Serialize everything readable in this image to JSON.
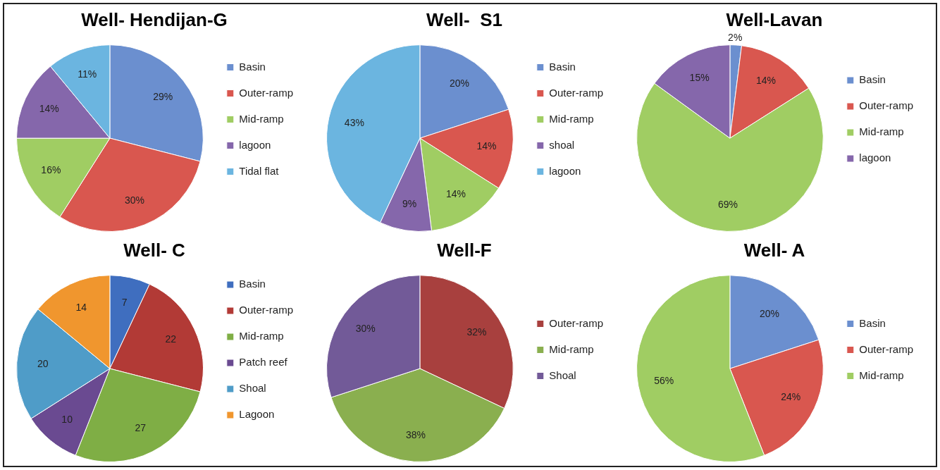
{
  "chart_data": [
    {
      "type": "pie",
      "title": "Well- Hendijan-G",
      "categories": [
        "Basin",
        "Outer-ramp",
        "Mid-ramp",
        "lagoon",
        "Tidal flat"
      ],
      "values": [
        29,
        30,
        16,
        14,
        11
      ],
      "value_labels": [
        "29%",
        "30%",
        "16%",
        "14%",
        "11%"
      ],
      "colors": [
        "#6b8fcf",
        "#d9574f",
        "#a0cd63",
        "#8567ab",
        "#6bb5e0"
      ],
      "legend": "right"
    },
    {
      "type": "pie",
      "title": "Well-  S1",
      "categories": [
        "Basin",
        "Outer-ramp",
        "Mid-ramp",
        "shoal",
        "lagoon"
      ],
      "values": [
        20,
        14,
        14,
        9,
        43
      ],
      "value_labels": [
        "20%",
        "14%",
        "14%",
        "9%",
        "43%"
      ],
      "colors": [
        "#6b8fcf",
        "#d9574f",
        "#a0cd63",
        "#8567ab",
        "#6bb5e0"
      ],
      "legend": "right"
    },
    {
      "type": "pie",
      "title": "Well-Lavan",
      "categories": [
        "Basin",
        "Outer-ramp",
        "Mid-ramp",
        "lagoon"
      ],
      "values": [
        2,
        14,
        69,
        15
      ],
      "value_labels": [
        "2%",
        "14%",
        "69%",
        "15%"
      ],
      "colors": [
        "#6b8fcf",
        "#d9574f",
        "#a0cd63",
        "#8567ab"
      ],
      "legend": "right"
    },
    {
      "type": "pie",
      "title": "Well- C",
      "categories": [
        "Basin",
        "Outer-ramp",
        "Mid-ramp",
        "Patch reef",
        "Shoal",
        "Lagoon"
      ],
      "values": [
        7,
        22,
        27,
        10,
        20,
        14
      ],
      "value_labels": [
        "7",
        "22",
        "27",
        "10",
        "20",
        "14"
      ],
      "colors": [
        "#3f6ebf",
        "#b23a36",
        "#7fae45",
        "#6a4a91",
        "#4f9cc8",
        "#f0962e"
      ],
      "legend": "right"
    },
    {
      "type": "pie",
      "title": "Well-F",
      "categories": [
        "Outer-ramp",
        "Mid-ramp",
        "Shoal"
      ],
      "values": [
        32,
        38,
        30
      ],
      "value_labels": [
        "32%",
        "38%",
        "30%"
      ],
      "colors": [
        "#a8403e",
        "#8aaf4f",
        "#725a98"
      ],
      "legend": "right"
    },
    {
      "type": "pie",
      "title": "Well- A",
      "categories": [
        "Basin",
        "Outer-ramp",
        "Mid-ramp"
      ],
      "values": [
        20,
        24,
        56
      ],
      "value_labels": [
        "20%",
        "24%",
        "56%"
      ],
      "colors": [
        "#6b8fcf",
        "#d9574f",
        "#a0cd63"
      ],
      "legend": "right"
    }
  ]
}
